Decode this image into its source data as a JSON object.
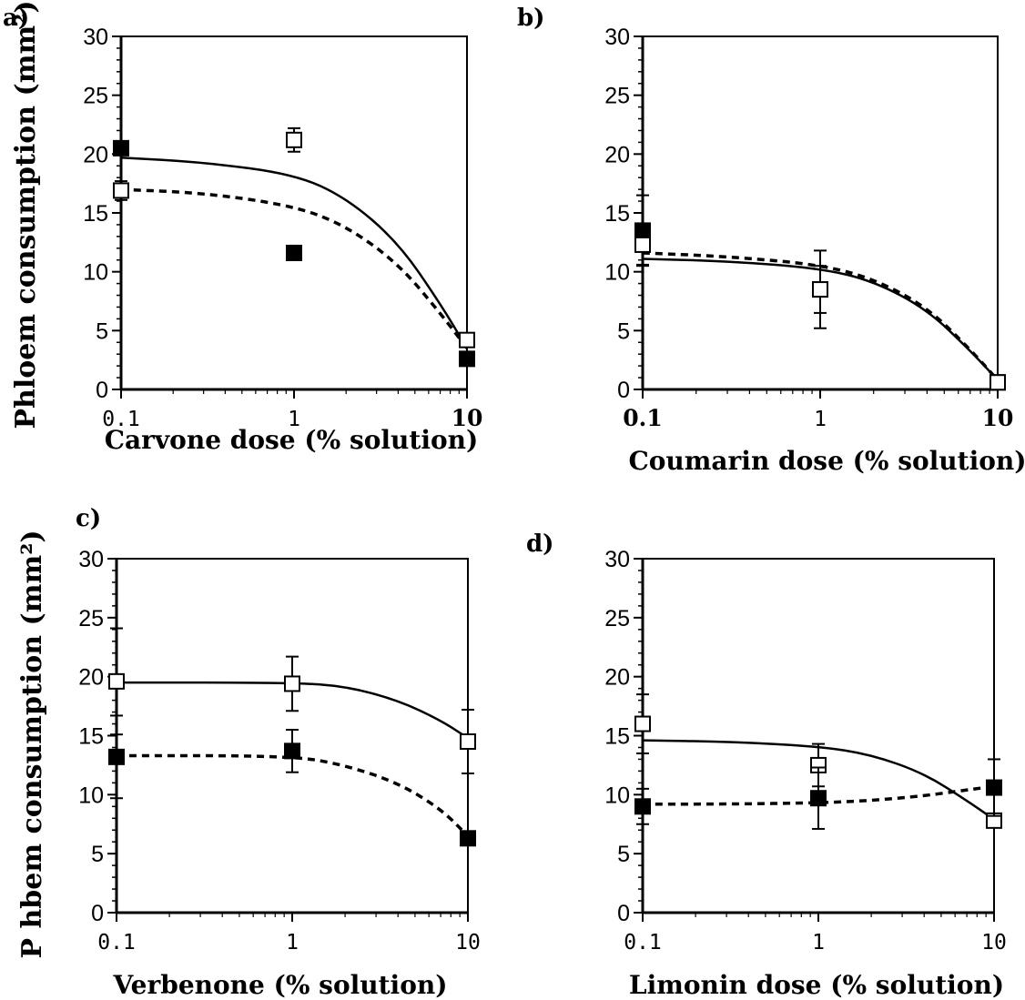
{
  "figure": {
    "ylabel_top": "Phloem consumption (mm²)",
    "ylabel_bottom": "P hbem consumption (mm²)"
  },
  "chart_data": [
    {
      "panel": "a)",
      "type": "scatter",
      "xlabel": "Carvone dose (% solution)",
      "x_scale": "log",
      "xlim": [
        0.1,
        10
      ],
      "ylim": [
        0,
        30
      ],
      "x_ticks": [
        "0.1",
        "1",
        "10"
      ],
      "y_ticks": [
        "0",
        "5",
        "10",
        "15",
        "20",
        "25",
        "30"
      ],
      "series": [
        {
          "marker": "filled-square",
          "line": "solid",
          "x": [
            0.1,
            1,
            10
          ],
          "y": [
            20.5,
            11.6,
            2.6
          ],
          "err": [
            0.4,
            0.4,
            0.4
          ],
          "fit": {
            "x": [
              0.1,
              0.3,
              1,
              2,
              4,
              7,
              10
            ],
            "y": [
              19.7,
              19.3,
              18.3,
              16.3,
              12.5,
              7.3,
              3.5
            ]
          }
        },
        {
          "marker": "open-square",
          "line": "dashed",
          "x": [
            0.1,
            1,
            10
          ],
          "y": [
            16.9,
            21.2,
            4.2
          ],
          "err": [
            0.8,
            1.0,
            0.5
          ],
          "fit": {
            "x": [
              0.1,
              0.3,
              1,
              2,
              4,
              7,
              10
            ],
            "y": [
              17.0,
              16.7,
              15.6,
              13.9,
              10.7,
              6.5,
              3.5
            ]
          }
        }
      ]
    },
    {
      "panel": "b)",
      "type": "scatter",
      "xlabel": "Coumarin dose (% solution)",
      "x_scale": "log",
      "xlim": [
        0.1,
        10
      ],
      "ylim": [
        0,
        30
      ],
      "x_ticks": [
        "0.1",
        "1",
        "10"
      ],
      "y_ticks": [
        "0",
        "5",
        "10",
        "15",
        "20",
        "25",
        "30"
      ],
      "series": [
        {
          "marker": "filled-square",
          "line": "solid",
          "x": [
            0.1,
            1,
            10
          ],
          "y": [
            13.5,
            8.5,
            0.6
          ],
          "err": [
            3.0,
            3.3,
            0.2
          ],
          "fit": {
            "x": [
              0.1,
              0.3,
              1,
              2,
              4,
              7,
              10
            ],
            "y": [
              11.1,
              10.9,
              10.3,
              9.2,
              6.8,
              3.3,
              0.8
            ]
          }
        },
        {
          "marker": "open-square",
          "line": "dashed",
          "x": [
            0.1,
            1,
            10
          ],
          "y": [
            12.3,
            8.5,
            0.6
          ],
          "err": [
            1.7,
            2.0,
            0.2
          ],
          "fit": {
            "x": [
              0.1,
              0.3,
              1,
              2,
              4,
              7,
              10
            ],
            "y": [
              11.6,
              11.3,
              10.6,
              9.4,
              7.0,
              3.4,
              0.8
            ]
          }
        }
      ]
    },
    {
      "panel": "c)",
      "type": "scatter",
      "xlabel": "Verbenone (% solution)",
      "x_scale": "log",
      "xlim": [
        0.1,
        10
      ],
      "ylim": [
        0,
        30
      ],
      "x_ticks": [
        "0.1",
        "1",
        "10"
      ],
      "y_ticks": [
        "0",
        "5",
        "10",
        "15",
        "20",
        "25",
        "30"
      ],
      "series": [
        {
          "marker": "open-square",
          "line": "solid",
          "x": [
            0.1,
            1,
            10
          ],
          "y": [
            19.6,
            19.4,
            14.5
          ],
          "err": [
            4.5,
            2.3,
            2.7
          ],
          "fit": {
            "x": [
              0.1,
              1,
              2,
              4,
              7,
              10
            ],
            "y": [
              19.5,
              19.5,
              19.2,
              18.0,
              16.3,
              14.8
            ]
          }
        },
        {
          "marker": "filled-square",
          "line": "dashed",
          "x": [
            0.1,
            1,
            10
          ],
          "y": [
            13.2,
            13.7,
            6.3
          ],
          "err": [
            3.5,
            1.8,
            0.3
          ],
          "fit": {
            "x": [
              0.1,
              1,
              2,
              4,
              7,
              10
            ],
            "y": [
              13.3,
              13.3,
              12.5,
              11.0,
              8.8,
              6.5
            ]
          }
        }
      ]
    },
    {
      "panel": "d)",
      "type": "scatter",
      "xlabel": "Limonin dose (% solution)",
      "x_scale": "log",
      "xlim": [
        0.1,
        10
      ],
      "ylim": [
        0,
        30
      ],
      "x_ticks": [
        "0.1",
        "1",
        "10"
      ],
      "y_ticks": [
        "0",
        "5",
        "10",
        "15",
        "20",
        "25",
        "30"
      ],
      "series": [
        {
          "marker": "open-square",
          "line": "solid",
          "x": [
            0.1,
            1,
            10
          ],
          "y": [
            16.0,
            12.5,
            7.8
          ],
          "err": [
            2.5,
            1.8,
            0.3
          ],
          "fit": {
            "x": [
              0.1,
              0.3,
              1,
              2,
              4,
              7,
              10
            ],
            "y": [
              14.6,
              14.5,
              14.1,
              13.4,
              11.8,
              9.5,
              7.9
            ]
          }
        },
        {
          "marker": "filled-square",
          "line": "dashed",
          "x": [
            0.1,
            1,
            10
          ],
          "y": [
            9.0,
            9.7,
            10.6
          ],
          "err": [
            1.5,
            2.6,
            2.4
          ],
          "fit": {
            "x": [
              0.1,
              0.3,
              1,
              2,
              4,
              7,
              10
            ],
            "y": [
              9.2,
              9.2,
              9.3,
              9.5,
              9.9,
              10.4,
              10.7
            ]
          }
        }
      ]
    }
  ]
}
